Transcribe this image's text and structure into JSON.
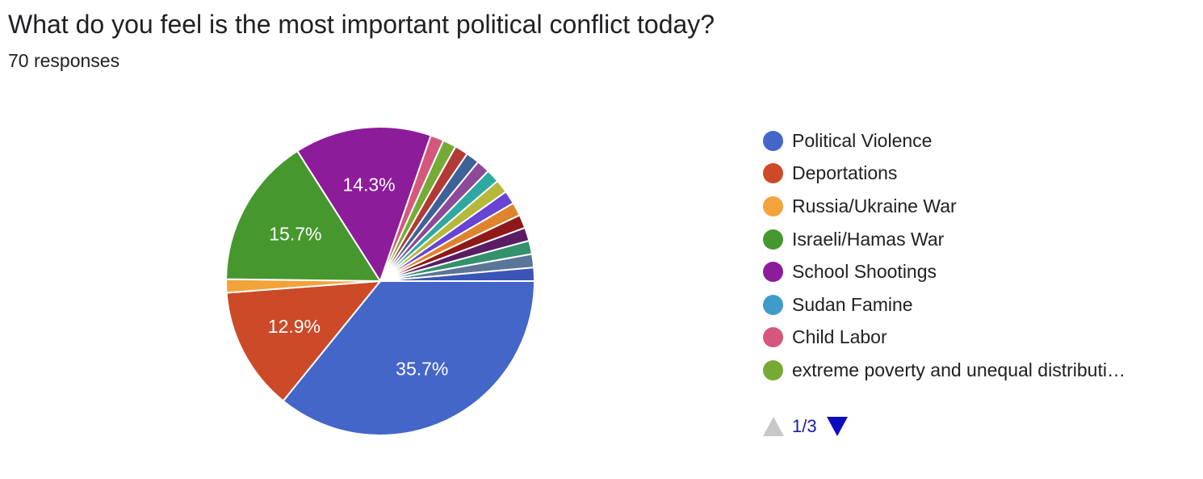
{
  "question": {
    "title": "What do you feel is the most important political conflict today?",
    "response_count": "70 responses"
  },
  "pager": {
    "text": "1/3",
    "prev_state": "disabled",
    "next_state": "enabled"
  },
  "chart_data": {
    "type": "pie",
    "slices": [
      {
        "label": "Political Violence",
        "value": 35.7,
        "color": "#4366c8",
        "show_label": true
      },
      {
        "label": "Deportations",
        "value": 12.9,
        "color": "#cc4a28",
        "show_label": true
      },
      {
        "label": "Russia/Ukraine War",
        "value": 1.4,
        "color": "#f2a33a",
        "show_label": false
      },
      {
        "label": "Israeli/Hamas War",
        "value": 15.7,
        "color": "#47972f",
        "show_label": true
      },
      {
        "label": "School Shootings",
        "value": 14.3,
        "color": "#8c1c99",
        "show_label": true
      },
      {
        "label": "Sudan Famine",
        "value": 0,
        "color": "#3f9bc9",
        "show_label": false
      },
      {
        "label": "Child Labor",
        "value": 1.4,
        "color": "#d6577c",
        "show_label": false
      },
      {
        "label": "extreme poverty and unequal distributi…",
        "value": 1.4,
        "color": "#75ab35",
        "show_label": false
      },
      {
        "label": "",
        "value": 1.4,
        "color": "#b13a36",
        "show_label": false
      },
      {
        "label": "",
        "value": 1.4,
        "color": "#3e6298",
        "show_label": false
      },
      {
        "label": "",
        "value": 1.4,
        "color": "#8e4a9a",
        "show_label": false
      },
      {
        "label": "",
        "value": 1.4,
        "color": "#2ea9a1",
        "show_label": false
      },
      {
        "label": "",
        "value": 1.4,
        "color": "#b6b83a",
        "show_label": false
      },
      {
        "label": "",
        "value": 1.4,
        "color": "#6844d4",
        "show_label": false
      },
      {
        "label": "",
        "value": 1.4,
        "color": "#e0832c",
        "show_label": false
      },
      {
        "label": "",
        "value": 1.4,
        "color": "#8f1818",
        "show_label": false
      },
      {
        "label": "",
        "value": 1.4,
        "color": "#5a1d64",
        "show_label": false
      },
      {
        "label": "",
        "value": 1.4,
        "color": "#33916c",
        "show_label": false
      },
      {
        "label": "",
        "value": 1.4,
        "color": "#5b7598",
        "show_label": false
      },
      {
        "label": "",
        "value": 1.4,
        "color": "#3a55b6",
        "show_label": false
      }
    ],
    "legend_visible_count": 8,
    "legend_placement": "right"
  }
}
